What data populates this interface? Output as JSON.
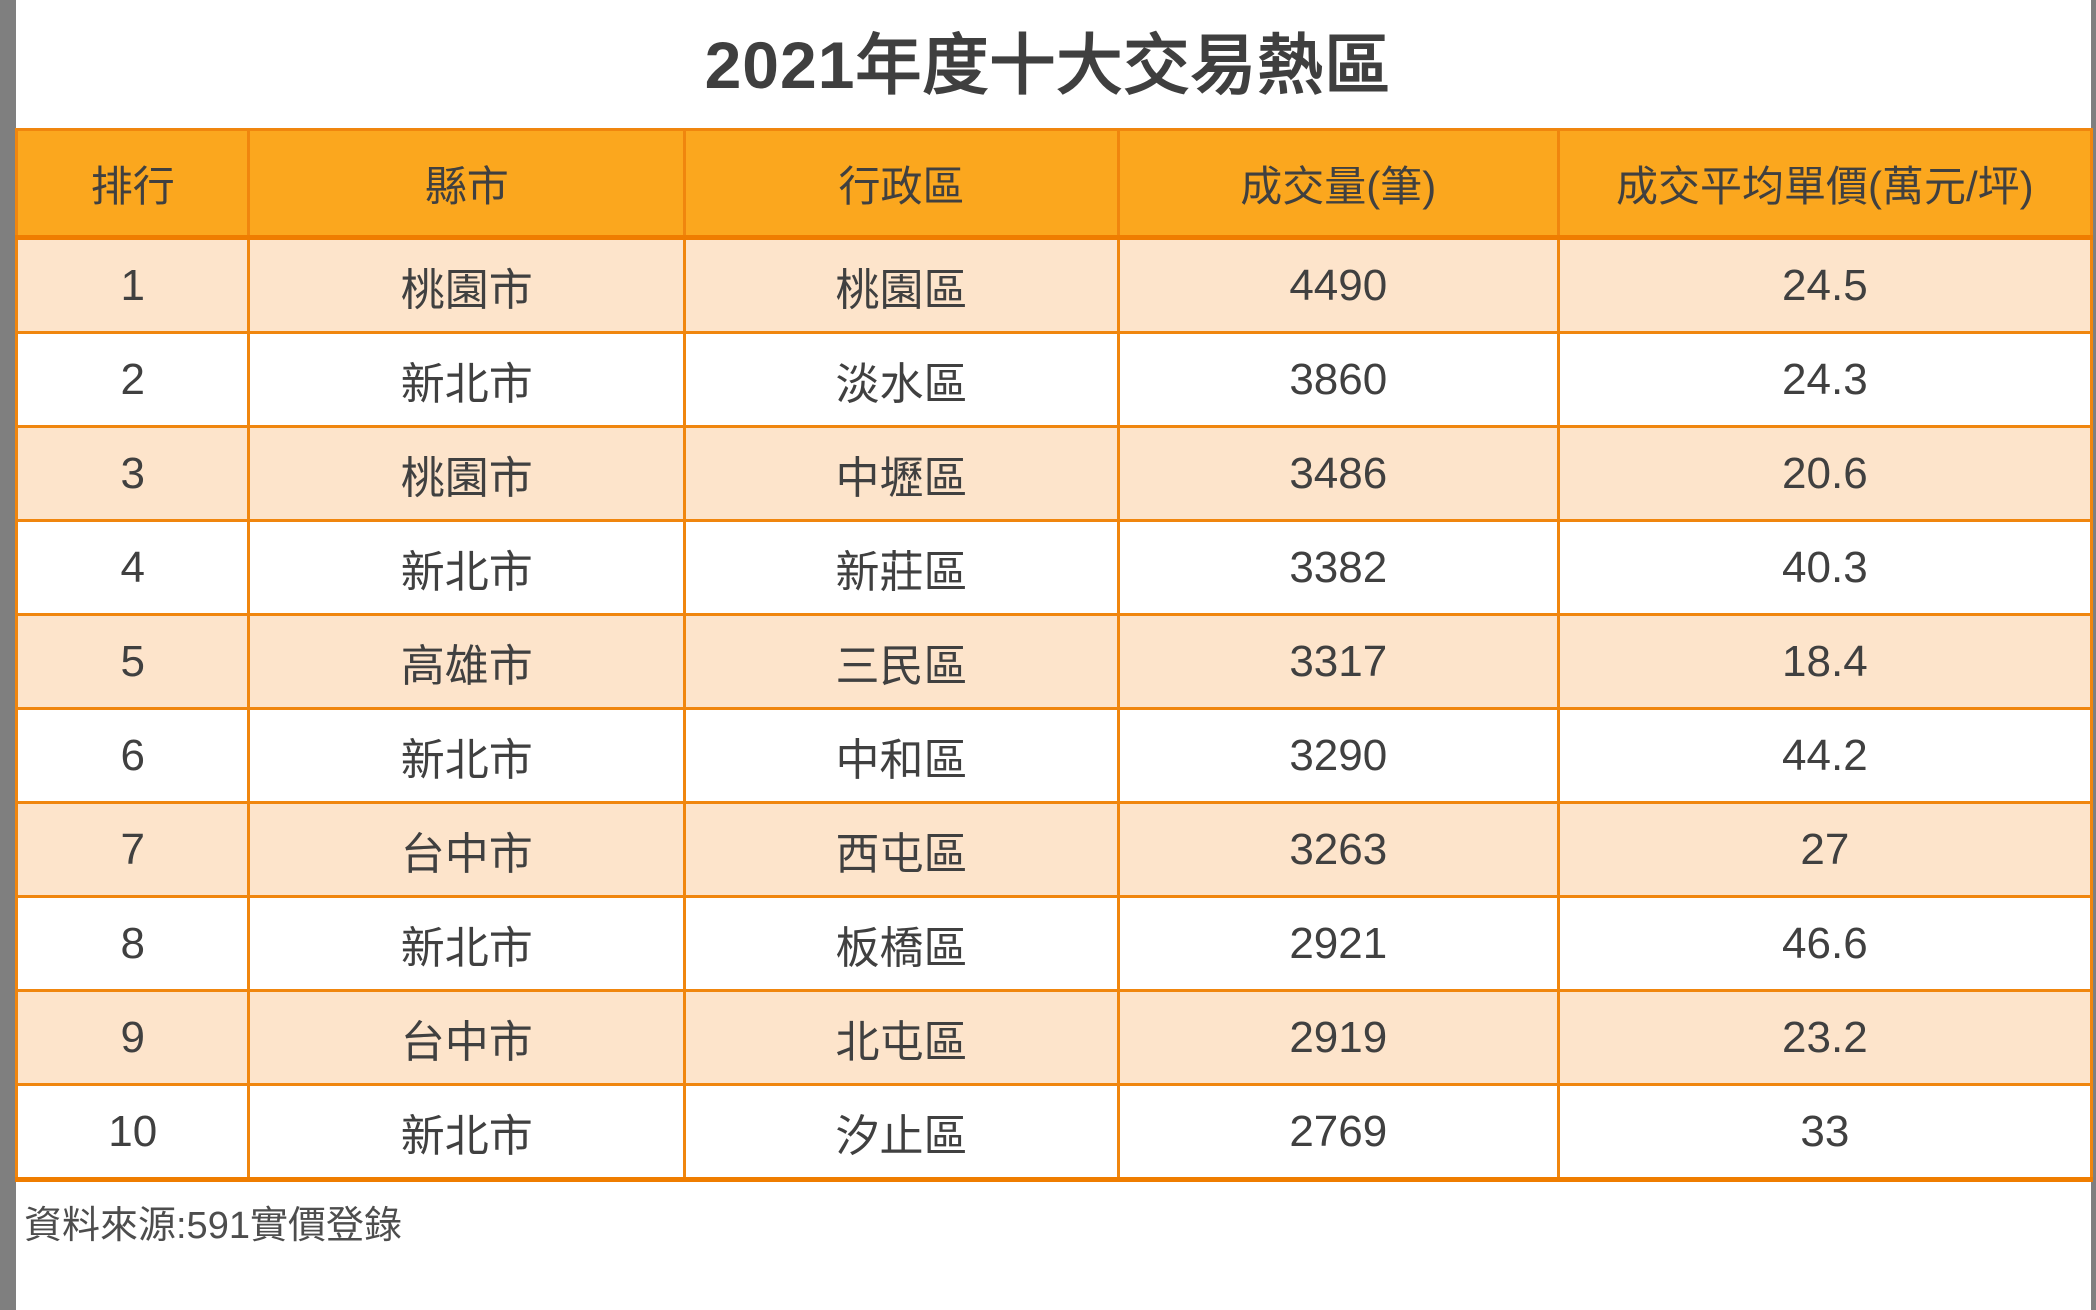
{
  "page": {
    "title": "2021年度十大交易熱區",
    "source_note": "資料來源:591實價登錄"
  },
  "table": {
    "columns": [
      "排行",
      "縣市",
      "行政區",
      "成交量(筆)",
      "成交平均單價(萬元/坪)"
    ],
    "rows": [
      [
        "1",
        "桃園市",
        "桃園區",
        "4490",
        "24.5"
      ],
      [
        "2",
        "新北市",
        "淡水區",
        "3860",
        "24.3"
      ],
      [
        "3",
        "桃園市",
        "中壢區",
        "3486",
        "20.6"
      ],
      [
        "4",
        "新北市",
        "新莊區",
        "3382",
        "40.3"
      ],
      [
        "5",
        "高雄市",
        "三民區",
        "3317",
        "18.4"
      ],
      [
        "6",
        "新北市",
        "中和區",
        "3290",
        "44.2"
      ],
      [
        "7",
        "台中市",
        "西屯區",
        "3263",
        "27"
      ],
      [
        "8",
        "新北市",
        "板橋區",
        "2921",
        "46.6"
      ],
      [
        "9",
        "台中市",
        "北屯區",
        "2919",
        "23.2"
      ],
      [
        "10",
        "新北市",
        "汐止區",
        "2769",
        "33"
      ]
    ]
  },
  "colors": {
    "header_bg": "#FBA71E",
    "row_alt_bg": "#FDE4CB",
    "row_bg": "#FFFFFF",
    "border": "#F0860E",
    "thick_border": "#EF7D00",
    "text": "#404040",
    "title": "#3F3F3F",
    "side_bar": "#7F7F7F"
  },
  "chart_data": {
    "type": "table",
    "title": "2021年度十大交易熱區",
    "columns": [
      "排行",
      "縣市",
      "行政區",
      "成交量(筆)",
      "成交平均單價(萬元/坪)"
    ],
    "rows": [
      {
        "rank": 1,
        "city": "桃園市",
        "district": "桃園區",
        "volume": 4490,
        "avg_price": 24.5
      },
      {
        "rank": 2,
        "city": "新北市",
        "district": "淡水區",
        "volume": 3860,
        "avg_price": 24.3
      },
      {
        "rank": 3,
        "city": "桃園市",
        "district": "中壢區",
        "volume": 3486,
        "avg_price": 20.6
      },
      {
        "rank": 4,
        "city": "新北市",
        "district": "新莊區",
        "volume": 3382,
        "avg_price": 40.3
      },
      {
        "rank": 5,
        "city": "高雄市",
        "district": "三民區",
        "volume": 3317,
        "avg_price": 18.4
      },
      {
        "rank": 6,
        "city": "新北市",
        "district": "中和區",
        "volume": 3290,
        "avg_price": 44.2
      },
      {
        "rank": 7,
        "city": "台中市",
        "district": "西屯區",
        "volume": 3263,
        "avg_price": 27
      },
      {
        "rank": 8,
        "city": "新北市",
        "district": "板橋區",
        "volume": 2921,
        "avg_price": 46.6
      },
      {
        "rank": 9,
        "city": "台中市",
        "district": "北屯區",
        "volume": 2919,
        "avg_price": 23.2
      },
      {
        "rank": 10,
        "city": "新北市",
        "district": "汐止區",
        "volume": 2769,
        "avg_price": 33
      }
    ],
    "source": "資料來源:591實價登錄",
    "layout": {
      "header_row": true,
      "zebra_striping": true,
      "first_data_row_shaded": true
    }
  }
}
